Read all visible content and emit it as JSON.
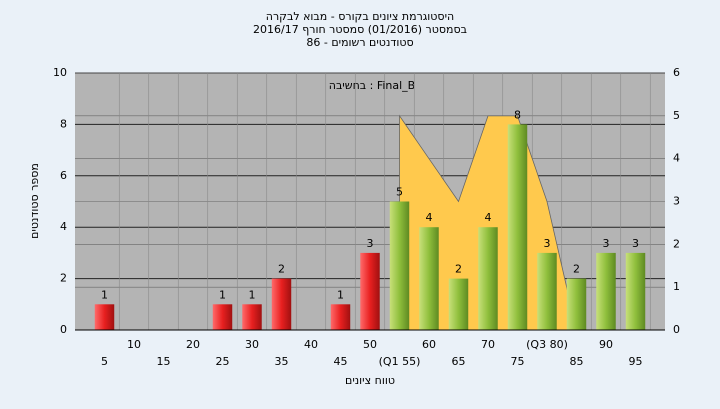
{
  "chart_data": {
    "type": "bar",
    "title": [
      "היסטוגרמת ציונים בקורס - מבוא לבקרה",
      "בסמסטר (01/2016) סמסטר חורף 2016/17",
      "סטודנטים רשומים - 86"
    ],
    "annotation": "בחשיבה : Final_B",
    "ylabel": "מספר סטודנטים",
    "xlabel": "טווח ציונים",
    "categories": [
      "5",
      "10",
      "15",
      "20",
      "25",
      "30",
      "35",
      "40",
      "45",
      "50",
      "(Q1 55)",
      "60",
      "65",
      "70",
      "75",
      "(Q3 80)",
      "85",
      "90",
      "95"
    ],
    "values": [
      1,
      0,
      0,
      0,
      1,
      1,
      2,
      0,
      1,
      3,
      5,
      4,
      2,
      4,
      8,
      3,
      2,
      3,
      3
    ],
    "colors": [
      "red",
      "red",
      "red",
      "red",
      "red",
      "red",
      "red",
      "red",
      "red",
      "red",
      "green",
      "green",
      "green",
      "green",
      "green",
      "green",
      "green",
      "green",
      "green"
    ],
    "area": {
      "type": "area",
      "axis": "y2",
      "color": "#ffc94d",
      "values": [
        null,
        null,
        null,
        null,
        null,
        null,
        null,
        null,
        null,
        null,
        5,
        4,
        3,
        5,
        5,
        3,
        0,
        null,
        null
      ]
    },
    "ylim": [
      0,
      10
    ],
    "yticks": [
      0,
      2,
      4,
      6,
      8,
      10
    ],
    "y2lim": [
      0,
      6
    ],
    "y2ticks": [
      0,
      1,
      2,
      3,
      4,
      5,
      6
    ],
    "grid": true
  }
}
